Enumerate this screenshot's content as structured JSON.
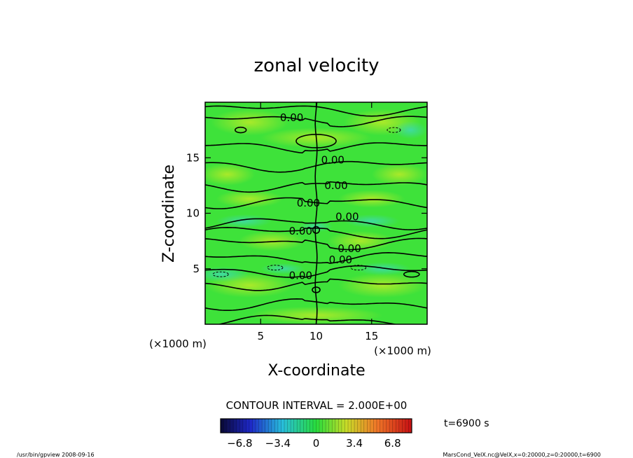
{
  "chart_data": {
    "type": "heatmap",
    "title": "zonal velocity",
    "xlabel": "X-coordinate",
    "ylabel": "Z-coordinate",
    "x_unit_label": "(×1000 m)",
    "y_unit_label": "(×1000 m)",
    "xlim": [
      0,
      20
    ],
    "ylim": [
      0,
      20
    ],
    "x_ticks": [
      5,
      10,
      15
    ],
    "y_ticks": [
      5,
      10,
      15
    ],
    "contour_interval_text": "CONTOUR INTERVAL = 2.000E+00",
    "contour_levels_z": [
      19.35,
      18.4,
      16.0,
      14.3,
      12.5,
      11.0,
      9.1,
      8.3,
      7.3,
      6.0,
      4.8,
      3.6,
      1.8,
      0.3
    ],
    "contour_labels": [
      {
        "text": "0.00",
        "x": 7.8,
        "z": 18.6
      },
      {
        "text": "0.00",
        "x": 11.5,
        "z": 14.8
      },
      {
        "text": "0.00",
        "x": 11.8,
        "z": 12.5
      },
      {
        "text": "0.00",
        "x": 9.3,
        "z": 10.9
      },
      {
        "text": "0.00",
        "x": 12.8,
        "z": 9.7
      },
      {
        "text": "0.00",
        "x": 8.6,
        "z": 8.4
      },
      {
        "text": "0.00",
        "x": 13.0,
        "z": 6.8
      },
      {
        "text": "0.00",
        "x": 12.2,
        "z": 5.8
      },
      {
        "text": "0.00",
        "x": 8.6,
        "z": 4.4
      }
    ],
    "colorbar": {
      "range": [
        -8.5,
        8.5
      ],
      "tick_labels": [
        "−6.8",
        "−3.4",
        "0",
        "3.4",
        "6.8"
      ],
      "tick_values": [
        -6.8,
        -3.4,
        0,
        3.4,
        6.8
      ]
    }
  },
  "annotations": {
    "time_label": "t=6900 s",
    "footer_left": "/usr/bin/gpview  2008-09-16",
    "footer_right": "MarsCond_VelX.nc@VelX,x=0:20000,z=0:20000,t=6900"
  },
  "colors": {
    "field_base": "#3ee23a",
    "field_light": "#9be62a",
    "field_cyan": "#40e0a0",
    "contour": "#000000"
  }
}
